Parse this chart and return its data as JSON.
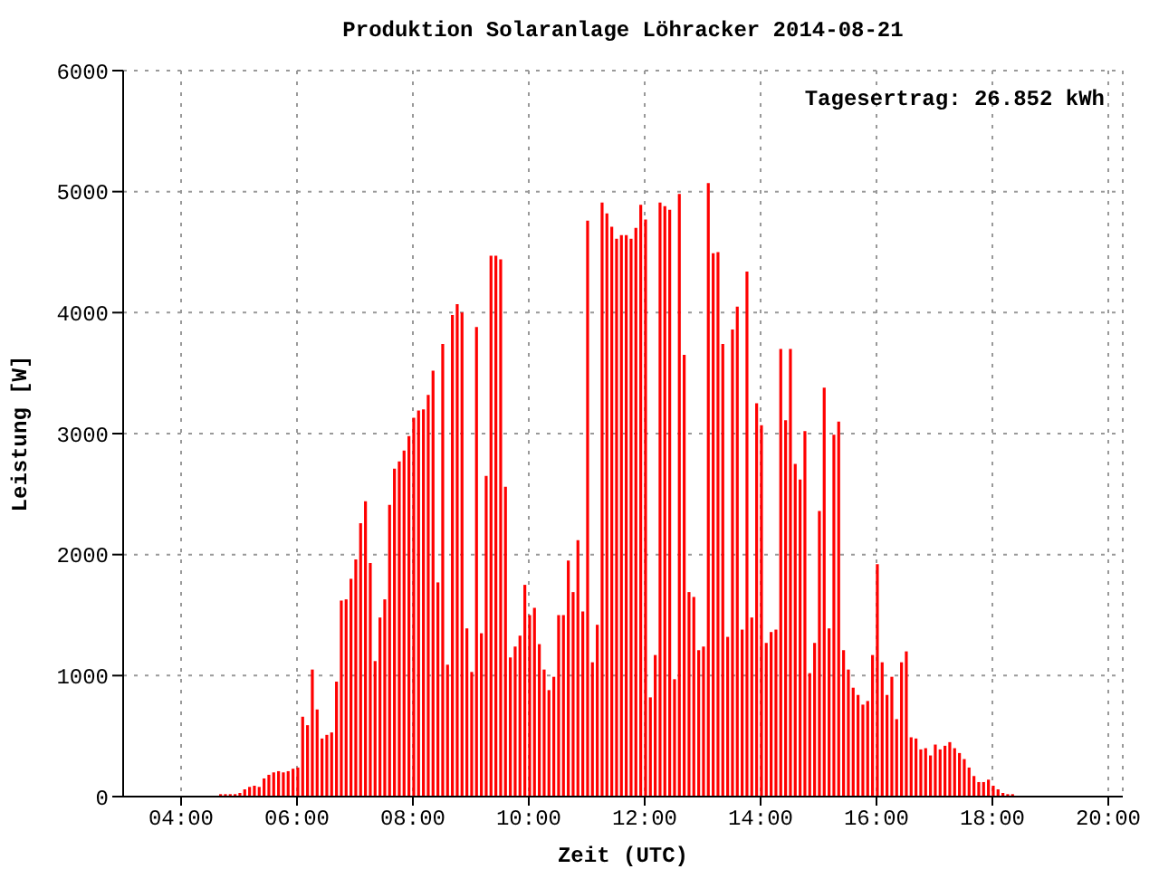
{
  "chart_data": {
    "type": "bar",
    "title": "Produktion Solaranlage Löhracker 2014-08-21",
    "xlabel": "Zeit (UTC)",
    "ylabel": "Leistung [W]",
    "annotations": [
      "Tagesertrag: 26.852 kWh"
    ],
    "x": [
      4.667,
      4.75,
      4.833,
      4.917,
      5,
      5.083,
      5.167,
      5.25,
      5.333,
      5.417,
      5.5,
      5.583,
      5.667,
      5.75,
      5.833,
      5.917,
      6,
      6.083,
      6.167,
      6.25,
      6.333,
      6.417,
      6.5,
      6.583,
      6.667,
      6.75,
      6.833,
      6.917,
      7,
      7.083,
      7.167,
      7.25,
      7.333,
      7.417,
      7.5,
      7.583,
      7.667,
      7.75,
      7.833,
      7.917,
      8,
      8.083,
      8.167,
      8.25,
      8.333,
      8.417,
      8.5,
      8.583,
      8.667,
      8.75,
      8.833,
      8.917,
      9,
      9.083,
      9.167,
      9.25,
      9.333,
      9.417,
      9.5,
      9.583,
      9.667,
      9.75,
      9.833,
      9.917,
      10,
      10.083,
      10.167,
      10.25,
      10.333,
      10.417,
      10.5,
      10.583,
      10.667,
      10.75,
      10.833,
      10.917,
      11,
      11.083,
      11.167,
      11.25,
      11.333,
      11.417,
      11.5,
      11.583,
      11.667,
      11.75,
      11.833,
      11.917,
      12,
      12.083,
      12.167,
      12.25,
      12.333,
      12.417,
      12.5,
      12.583,
      12.667,
      12.75,
      12.833,
      12.917,
      13,
      13.083,
      13.167,
      13.25,
      13.333,
      13.417,
      13.5,
      13.583,
      13.667,
      13.75,
      13.833,
      13.917,
      14,
      14.083,
      14.167,
      14.25,
      14.333,
      14.417,
      14.5,
      14.583,
      14.667,
      14.75,
      14.833,
      14.917,
      15,
      15.083,
      15.167,
      15.25,
      15.333,
      15.417,
      15.5,
      15.583,
      15.667,
      15.75,
      15.833,
      15.917,
      16,
      16.083,
      16.167,
      16.25,
      16.333,
      16.417,
      16.5,
      16.583,
      16.667,
      16.75,
      16.833,
      16.917,
      17,
      17.083,
      17.167,
      17.25,
      17.333,
      17.417,
      17.5,
      17.583,
      17.667,
      17.75,
      17.833,
      17.917,
      18,
      18.083,
      18.167,
      18.25,
      18.333
    ],
    "values": [
      20,
      20,
      20,
      20,
      30,
      60,
      80,
      90,
      80,
      150,
      180,
      200,
      210,
      200,
      210,
      230,
      240,
      660,
      590,
      1050,
      720,
      480,
      510,
      530,
      950,
      1620,
      1630,
      1800,
      1960,
      2260,
      2440,
      1930,
      1120,
      1480,
      1630,
      2410,
      2710,
      2770,
      2860,
      2980,
      3130,
      3190,
      3200,
      3320,
      3520,
      1770,
      3740,
      1090,
      3980,
      4070,
      4000,
      1390,
      1030,
      3880,
      1350,
      2650,
      4470,
      4470,
      4440,
      2560,
      1150,
      1240,
      1330,
      1750,
      1500,
      1560,
      1260,
      1050,
      880,
      990,
      1500,
      1500,
      1950,
      1690,
      2120,
      1530,
      4760,
      1110,
      1420,
      4910,
      4820,
      4710,
      4610,
      4640,
      4640,
      4610,
      4700,
      4890,
      4770,
      820,
      1170,
      4910,
      4880,
      4850,
      970,
      4980,
      3650,
      1690,
      1650,
      1210,
      1240,
      5070,
      4490,
      4500,
      3740,
      1320,
      3860,
      4050,
      1380,
      4340,
      1480,
      3250,
      3070,
      1270,
      1360,
      1380,
      3700,
      3110,
      3700,
      2750,
      2620,
      3020,
      1020,
      1270,
      2360,
      3380,
      1390,
      2990,
      3100,
      1210,
      1050,
      900,
      840,
      760,
      790,
      1170,
      1920,
      1110,
      840,
      990,
      640,
      1110,
      1200,
      490,
      480,
      390,
      400,
      340,
      430,
      390,
      420,
      450,
      400,
      360,
      310,
      240,
      170,
      120,
      120,
      140,
      90,
      60,
      30,
      20,
      20
    ],
    "color": "#ff0000",
    "xlim": [
      3,
      20.25
    ],
    "xticks": [
      {
        "value": 4,
        "label": "04:00"
      },
      {
        "value": 6,
        "label": "06:00"
      },
      {
        "value": 8,
        "label": "08:00"
      },
      {
        "value": 10,
        "label": "10:00"
      },
      {
        "value": 12,
        "label": "12:00"
      },
      {
        "value": 14,
        "label": "14:00"
      },
      {
        "value": 16,
        "label": "16:00"
      },
      {
        "value": 18,
        "label": "18:00"
      },
      {
        "value": 20,
        "label": "20:00"
      }
    ],
    "ylim": [
      0,
      6000
    ],
    "yticks": [
      0,
      1000,
      2000,
      3000,
      4000,
      5000,
      6000
    ],
    "grid": true
  }
}
